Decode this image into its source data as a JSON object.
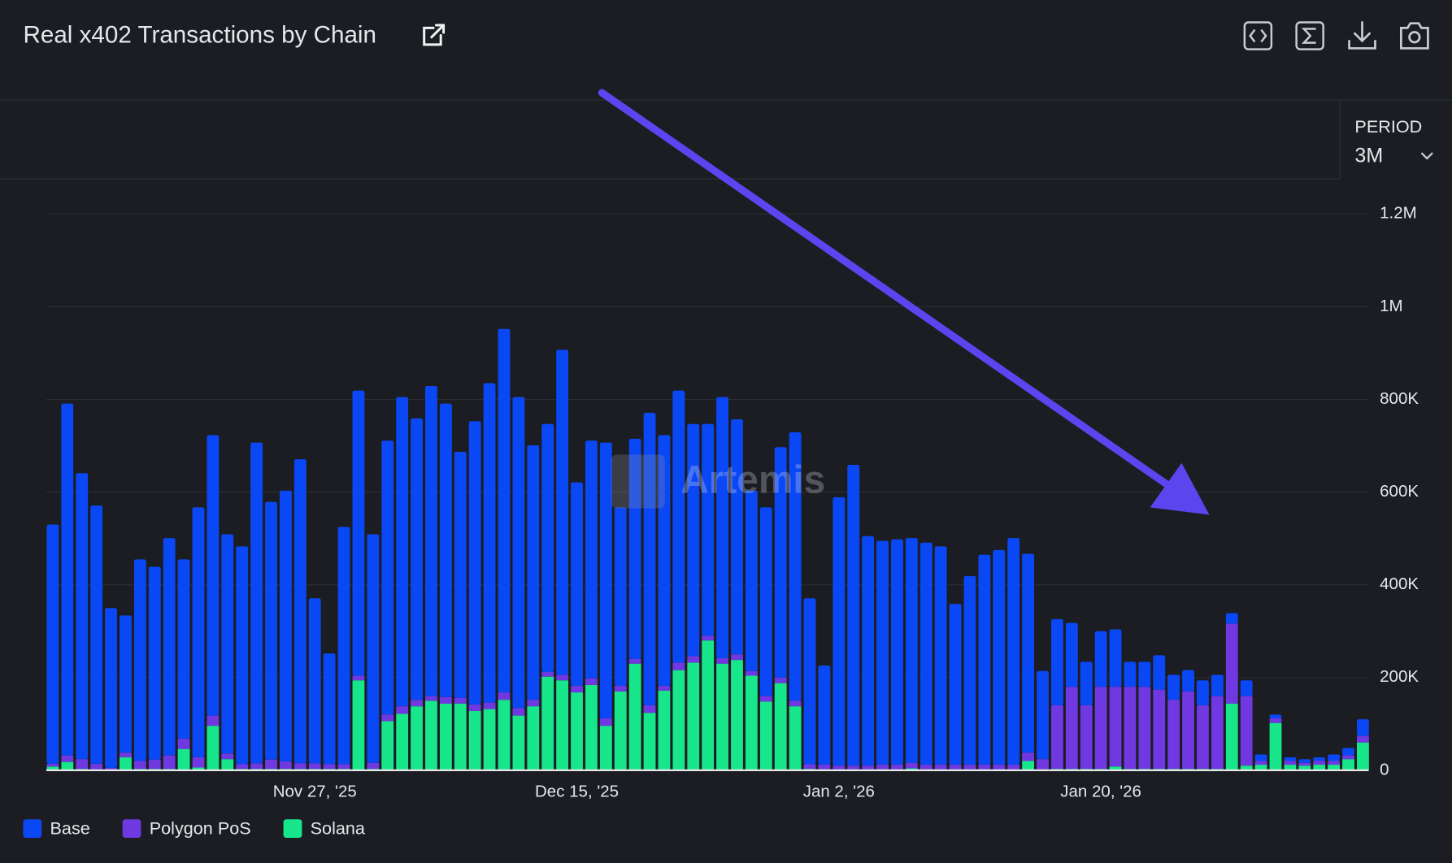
{
  "chart_data": {
    "type": "bar",
    "stacked": true,
    "title": "Real x402 Transactions by Chain",
    "period_label": "PERIOD",
    "period_value": "3M",
    "watermark": "Artemis",
    "categories": [
      null,
      null,
      null,
      null,
      null,
      null,
      null,
      null,
      null,
      null,
      null,
      null,
      null,
      null,
      null,
      null,
      null,
      null,
      "Nov 27, '25",
      null,
      null,
      null,
      null,
      null,
      null,
      null,
      null,
      null,
      null,
      null,
      null,
      null,
      null,
      null,
      null,
      null,
      "Dec 15, '25",
      null,
      null,
      null,
      null,
      null,
      null,
      null,
      null,
      null,
      null,
      null,
      null,
      null,
      null,
      null,
      null,
      null,
      "Jan 2, '26",
      null,
      null,
      null,
      null,
      null,
      null,
      null,
      null,
      null,
      null,
      null,
      null,
      null,
      null,
      null,
      null,
      null,
      "Jan 20, '26",
      null,
      null,
      null,
      null,
      null,
      null,
      null,
      null,
      null,
      null,
      null,
      null,
      null,
      null,
      null,
      null,
      null,
      null
    ],
    "series": [
      {
        "name": "Base",
        "color": "#0b48f5",
        "values": [
          516000,
          759000,
          617000,
          557000,
          345000,
          296000,
          435000,
          416000,
          469000,
          387000,
          539000,
          605000,
          473000,
          470000,
          692000,
          556000,
          584000,
          656000,
          356000,
          239000,
          512000,
          615000,
          493000,
          591000,
          667000,
          607000,
          669000,
          633000,
          531000,
          611000,
          689000,
          784000,
          671000,
          549000,
          535000,
          701000,
          439000,
          513000,
          595000,
          385000,
          475000,
          631000,
          541000,
          587000,
          501000,
          457000,
          563000,
          507000,
          389000,
          407000,
          497000,
          579000,
          358000,
          214000,
          579000,
          649000,
          495000,
          483000,
          486000,
          485000,
          479000,
          471000,
          347000,
          407000,
          453000,
          463000,
          489000,
          429000,
          190000,
          186000,
          138000,
          94000,
          120000,
          124000,
          54000,
          54000,
          74000,
          54000,
          46000,
          54000,
          46000,
          23000,
          34000,
          14000,
          8000,
          8000,
          8000,
          8000,
          14000,
          16000,
          36000
        ]
      },
      {
        "name": "Polygon PoS",
        "color": "#7038e0",
        "values": [
          6000,
          14000,
          21000,
          12000,
          3000,
          10000,
          17000,
          20000,
          29000,
          22000,
          22000,
          22000,
          12000,
          10000,
          12000,
          20000,
          16000,
          12000,
          12000,
          10000,
          10000,
          10000,
          13000,
          14000,
          16000,
          14000,
          10000,
          14000,
          12000,
          14000,
          14000,
          16000,
          16000,
          14000,
          10000,
          12000,
          14000,
          14000,
          16000,
          12000,
          10000,
          16000,
          10000,
          16000,
          14000,
          10000,
          12000,
          12000,
          10000,
          12000,
          12000,
          12000,
          10000,
          10000,
          8000,
          8000,
          8000,
          10000,
          10000,
          12000,
          10000,
          10000,
          10000,
          10000,
          10000,
          10000,
          10000,
          18000,
          22000,
          137000,
          177000,
          137000,
          177000,
          172000,
          177000,
          177000,
          171000,
          149000,
          167000,
          137000,
          157000,
          172000,
          150000,
          8000,
          10000,
          8000,
          6000,
          8000,
          8000,
          8000,
          14000
        ]
      },
      {
        "name": "Solana",
        "color": "#17e68b",
        "values": [
          8000,
          18000,
          3000,
          2000,
          2000,
          28000,
          3000,
          3000,
          3000,
          46000,
          6000,
          96000,
          24000,
          3000,
          3000,
          3000,
          3000,
          3000,
          3000,
          3000,
          3000,
          194000,
          3000,
          106000,
          122000,
          138000,
          150000,
          144000,
          144000,
          128000,
          132000,
          152000,
          118000,
          138000,
          202000,
          194000,
          168000,
          184000,
          96000,
          170000,
          230000,
          124000,
          172000,
          216000,
          232000,
          280000,
          230000,
          238000,
          204000,
          148000,
          188000,
          138000,
          3000,
          2000,
          2000,
          2000,
          2000,
          2000,
          2000,
          4000,
          2000,
          2000,
          2000,
          2000,
          2000,
          2000,
          2000,
          20000,
          2000,
          3000,
          3000,
          3000,
          3000,
          8000,
          3000,
          3000,
          3000,
          3000,
          3000,
          3000,
          3000,
          144000,
          10000,
          12000,
          102000,
          12000,
          10000,
          12000,
          12000,
          24000,
          60000
        ]
      }
    ],
    "ylim": [
      0,
      1200000
    ],
    "yticks": [
      0,
      {
        "value": 200000,
        "label": "200K"
      },
      {
        "value": 400000,
        "label": "400K"
      },
      {
        "value": 600000,
        "label": "600K"
      },
      {
        "value": 800000,
        "label": "800K"
      },
      {
        "value": 1000000,
        "label": "1M"
      },
      {
        "value": 1200000,
        "label": "1.2M"
      }
    ],
    "grid": true,
    "legend": "bottom-left"
  }
}
